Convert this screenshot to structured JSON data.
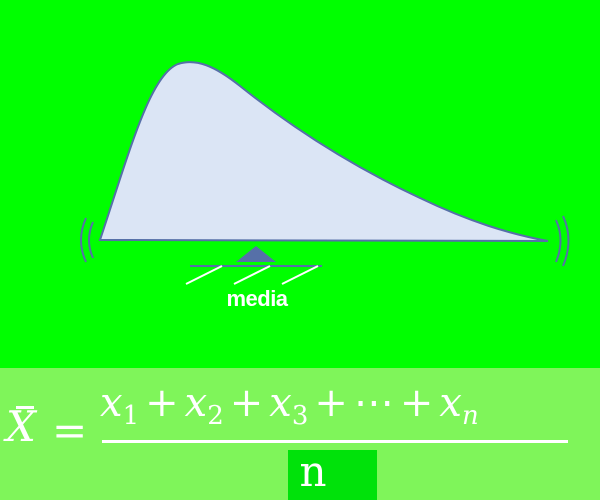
{
  "diagram": {
    "label": "media",
    "colors": {
      "background": "#00ff00",
      "curve_fill": "#dbe5f5",
      "curve_stroke": "#5670a8",
      "fulcrum": "#5670a8",
      "label": "#ffffff"
    },
    "icons": [
      "fulcrum-triangle-icon",
      "left-wobble-icon",
      "right-wobble-icon"
    ]
  },
  "formula": {
    "lhs": "X",
    "equals": "=",
    "numerator_terms": [
      {
        "var": "x",
        "sub": "1"
      },
      {
        "var": "x",
        "sub": "2"
      },
      {
        "var": "x",
        "sub": "3"
      },
      {
        "var": "⋯",
        "sub": ""
      },
      {
        "var": "x",
        "sub": "n"
      }
    ],
    "plus": "+",
    "denominator": "n",
    "colors": {
      "band": "#7ff55a",
      "denominator_box": "#00e20a",
      "text": "#ffffff"
    }
  }
}
